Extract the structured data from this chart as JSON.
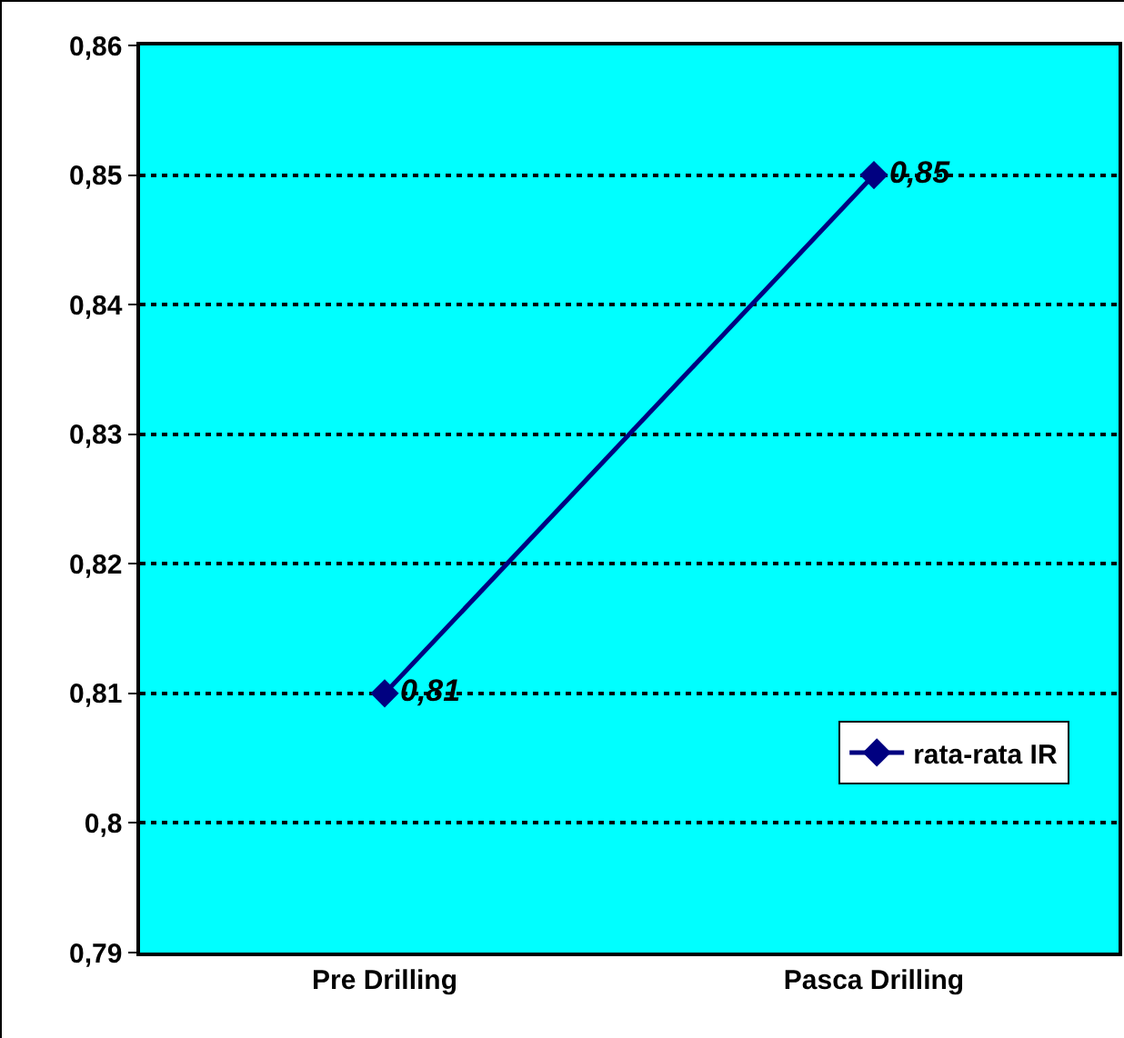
{
  "chart_data": {
    "type": "line",
    "categories": [
      "Pre Drilling",
      "Pasca Drilling"
    ],
    "series": [
      {
        "name": "rata-rata IR",
        "color": "#000080",
        "values": [
          0.81,
          0.85
        ],
        "value_labels": [
          "0,81",
          "0,85"
        ]
      }
    ],
    "ylim": [
      0.79,
      0.86
    ],
    "yticks": [
      {
        "value": 0.79,
        "label": "0,79"
      },
      {
        "value": 0.8,
        "label": "0,8"
      },
      {
        "value": 0.81,
        "label": "0,81"
      },
      {
        "value": 0.82,
        "label": "0,82"
      },
      {
        "value": 0.83,
        "label": "0,83"
      },
      {
        "value": 0.84,
        "label": "0,84"
      },
      {
        "value": 0.85,
        "label": "0,85"
      },
      {
        "value": 0.86,
        "label": "0,86"
      }
    ],
    "grid": "y",
    "legend": "bottom right",
    "marker": "diamond",
    "line_style": "solid"
  }
}
